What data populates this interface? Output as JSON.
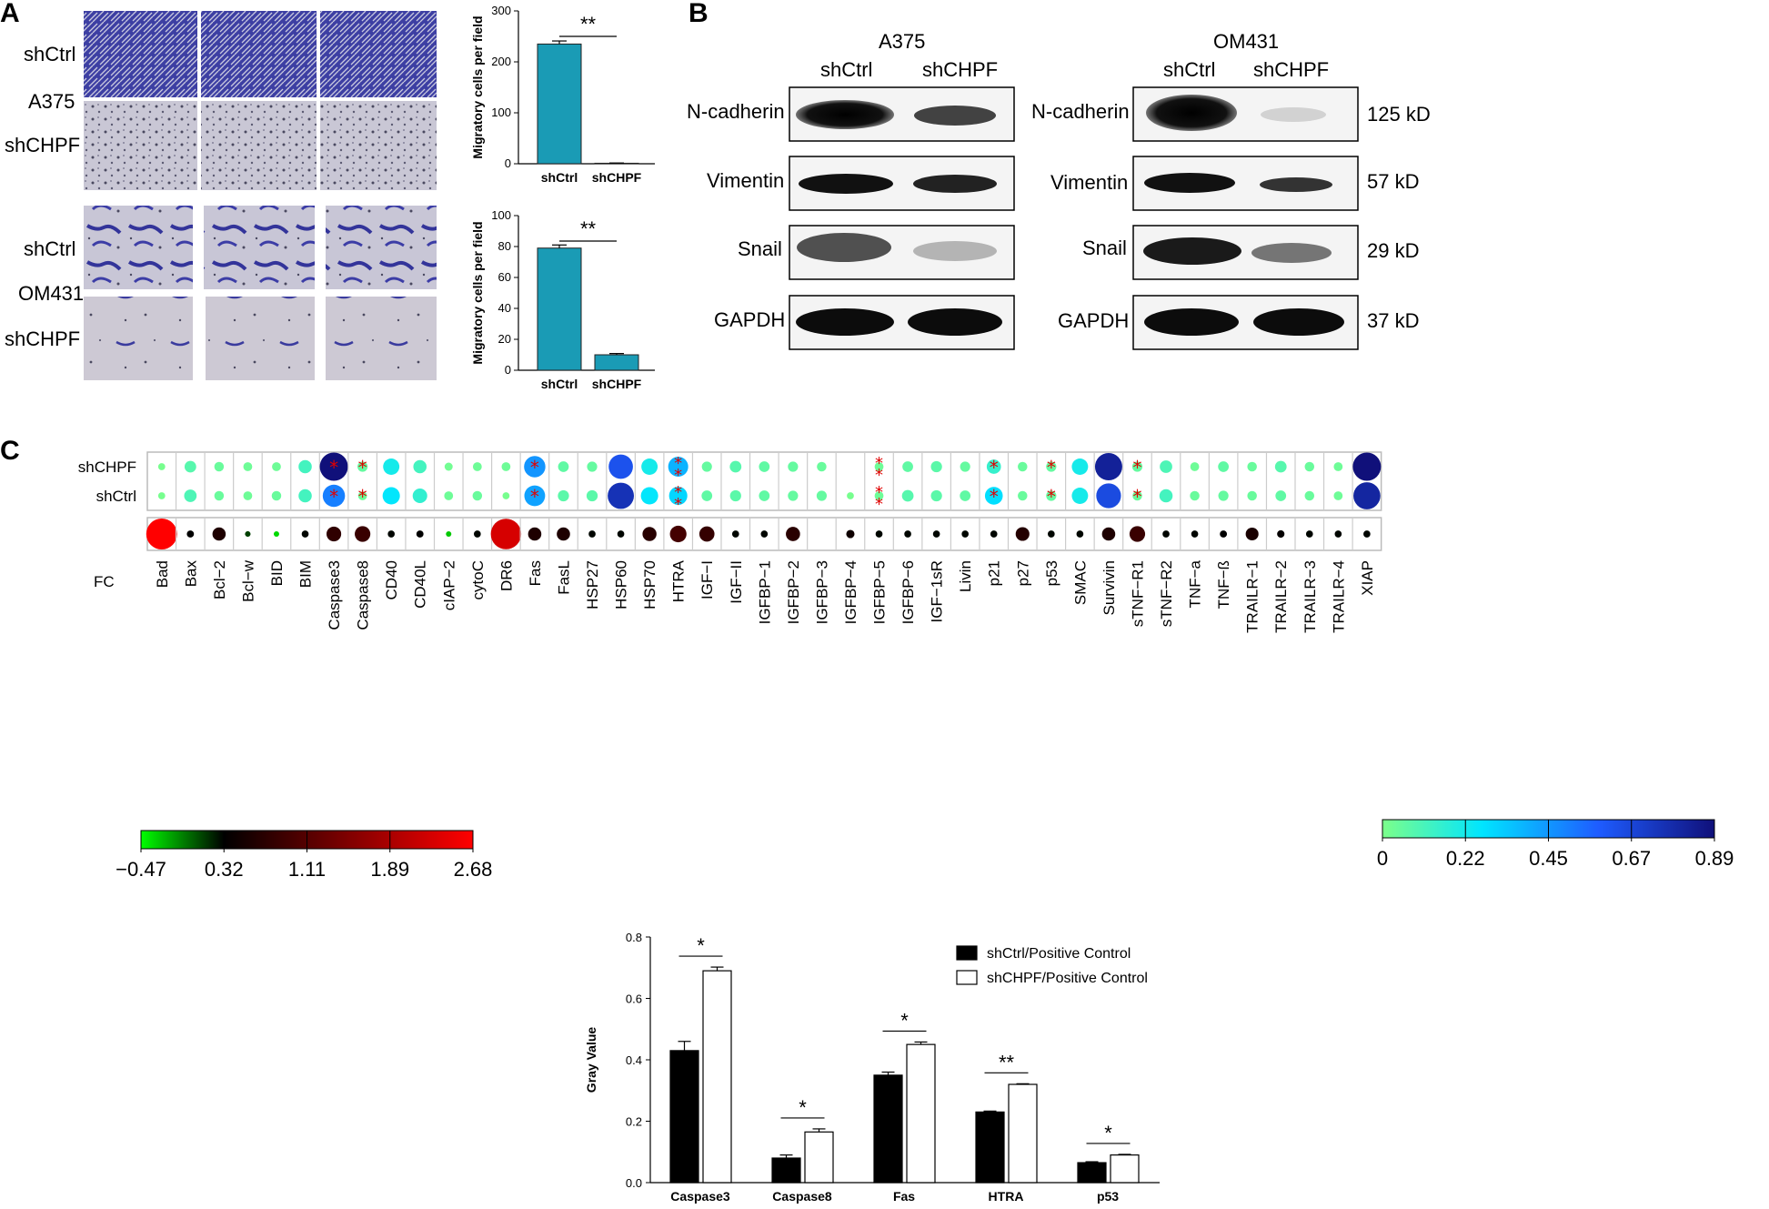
{
  "panels": {
    "a": "A",
    "b": "B",
    "c": "C"
  },
  "panel_a": {
    "row_labels": {
      "a375": "A375",
      "om431": "OM431",
      "shctrl": "shCtrl",
      "shchpf": "shCHPF"
    }
  },
  "panel_b": {
    "groups": [
      "A375",
      "OM431"
    ],
    "conditions": [
      "shCtrl",
      "shCHPF"
    ],
    "proteins": [
      "N-cadherin",
      "Vimentin",
      "Snail",
      "GAPDH"
    ],
    "sizes": [
      "125 kD",
      "57 kD",
      "29 kD",
      "37 kD"
    ]
  },
  "panel_c": {
    "row_labels": [
      "shCHPF",
      "shCtrl",
      "FC"
    ],
    "proteins": [
      "Bad",
      "Bax",
      "Bcl−2",
      "Bcl−w",
      "BID",
      "BIM",
      "Caspase3",
      "Caspase8",
      "CD40",
      "CD40L",
      "cIAP−2",
      "cytoC",
      "DR6",
      "Fas",
      "FasL",
      "HSP27",
      "HSP60",
      "HSP70",
      "HTRA",
      "IGF−I",
      "IGF−II",
      "IGFBP−1",
      "IGFBP−2",
      "IGFBP−3",
      "IGFBP−4",
      "IGFBP−5",
      "IGFBP−6",
      "IGF−1sR",
      "Livin",
      "p21",
      "p27",
      "p53",
      "SMAC",
      "Survivin",
      "sTNF−R1",
      "sTNF−R2",
      "TNF−a",
      "TNF−ß",
      "TRAILR−1",
      "TRAILR−2",
      "TRAILR−3",
      "TRAILR−4",
      "XIAP"
    ],
    "shchpf_values": [
      0.01,
      0.08,
      0.04,
      0.03,
      0.03,
      0.12,
      0.89,
      0.05,
      0.22,
      0.12,
      0.02,
      0.03,
      0.03,
      0.45,
      0.06,
      0.05,
      0.62,
      0.22,
      0.38,
      0.05,
      0.08,
      0.06,
      0.05,
      0.04,
      null,
      0.03,
      0.06,
      0.07,
      0.05,
      0.15,
      0.04,
      0.05,
      0.22,
      0.82,
      0.05,
      0.1,
      0.03,
      0.06,
      0.04,
      0.08,
      0.04,
      0.03,
      0.89
    ],
    "shctrl_values": [
      0.01,
      0.1,
      0.04,
      0.03,
      0.04,
      0.12,
      0.5,
      0.03,
      0.26,
      0.16,
      0.03,
      0.04,
      0.01,
      0.42,
      0.07,
      0.07,
      0.75,
      0.26,
      0.3,
      0.06,
      0.07,
      0.06,
      0.05,
      0.05,
      0.01,
      0.03,
      0.08,
      0.07,
      0.06,
      0.28,
      0.04,
      0.05,
      0.22,
      0.65,
      0.04,
      0.12,
      0.04,
      0.05,
      0.04,
      0.06,
      0.04,
      0.03,
      0.8
    ],
    "shchpf_stars": [
      0,
      0,
      0,
      0,
      0,
      0,
      1,
      1,
      0,
      0,
      0,
      0,
      0,
      1,
      0,
      0,
      0,
      0,
      2,
      0,
      0,
      0,
      0,
      0,
      0,
      2,
      0,
      0,
      0,
      1,
      0,
      1,
      0,
      0,
      1,
      0,
      0,
      0,
      0,
      0,
      0,
      0,
      0
    ],
    "shctrl_stars": [
      0,
      0,
      0,
      0,
      0,
      0,
      1,
      1,
      0,
      0,
      0,
      0,
      0,
      1,
      0,
      0,
      0,
      0,
      2,
      0,
      0,
      0,
      0,
      0,
      0,
      2,
      0,
      0,
      0,
      1,
      0,
      1,
      0,
      0,
      1,
      0,
      0,
      0,
      0,
      0,
      0,
      0,
      0
    ],
    "fc_values": [
      2.68,
      0.32,
      0.6,
      0.12,
      -0.35,
      0.3,
      0.75,
      0.85,
      0.3,
      0.32,
      -0.3,
      0.3,
      2.3,
      0.6,
      0.6,
      0.3,
      0.3,
      0.68,
      0.95,
      0.8,
      0.3,
      0.3,
      0.7,
      null,
      0.45,
      0.3,
      0.3,
      0.3,
      0.3,
      0.3,
      0.65,
      0.3,
      0.3,
      0.6,
      0.85,
      0.3,
      0.3,
      0.32,
      0.55,
      0.35,
      0.3,
      0.3,
      0.3
    ],
    "fc_colorbar": {
      "ticks": [
        "−0.47",
        "0.32",
        "1.11",
        "1.89",
        "2.68"
      ],
      "colors": [
        "#00ff00",
        "#000000",
        "#ff0000"
      ]
    },
    "value_colorbar": {
      "ticks": [
        "0",
        "0.22",
        "0.45",
        "0.67",
        "0.89"
      ],
      "colors": [
        "#7cff8a",
        "#00e5ff",
        "#1e5cff",
        "#10107a"
      ]
    }
  },
  "chart_data": [
    {
      "type": "bar",
      "categories": [
        "shCtrl",
        "shCHPF"
      ],
      "values": [
        235,
        1
      ],
      "errors": [
        6,
        0.5
      ],
      "ylabel": "Migratory cells per field",
      "ylim": [
        0,
        300
      ],
      "yticks": [
        "0",
        "100",
        "200",
        "300"
      ],
      "significance": "**",
      "color": "#1a9bb5"
    },
    {
      "type": "bar",
      "categories": [
        "shCtrl",
        "shCHPF"
      ],
      "values": [
        79,
        10
      ],
      "errors": [
        2,
        0.8
      ],
      "ylabel": "Migratory cells per field",
      "ylim": [
        0,
        100
      ],
      "yticks": [
        "0",
        "20",
        "40",
        "60",
        "80",
        "100"
      ],
      "significance": "**",
      "color": "#1a9bb5"
    },
    {
      "type": "bar",
      "categories": [
        "Caspase3",
        "Caspase8",
        "Fas",
        "HTRA",
        "p53"
      ],
      "series": [
        {
          "name": "shCtrl/Positive Control",
          "values": [
            0.43,
            0.08,
            0.35,
            0.23,
            0.065
          ],
          "errors": [
            0.03,
            0.01,
            0.01,
            0.003,
            0.003
          ]
        },
        {
          "name": "shCHPF/Positive Control",
          "values": [
            0.69,
            0.165,
            0.45,
            0.32,
            0.09
          ],
          "errors": [
            0.012,
            0.01,
            0.008,
            0.002,
            0.002
          ]
        }
      ],
      "significance": [
        "*",
        "*",
        "*",
        "**",
        "*"
      ],
      "ylabel": "Gray Value",
      "ylim": [
        0,
        0.8
      ],
      "yticks": [
        "0.0",
        "0.2",
        "0.4",
        "0.6",
        "0.8"
      ],
      "legend": "top-right"
    }
  ]
}
